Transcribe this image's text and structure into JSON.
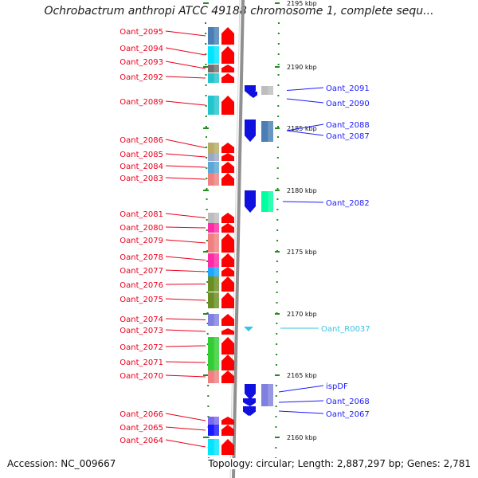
{
  "title": "Ochrobactrum anthropi ATCC 49188 chromosome 1, complete sequ...",
  "accession": "Accession: NC_009667",
  "summary": "Topology: circular; Length: 2,887,297 bp; Genes: 2,781",
  "colors": {
    "left_label": "#e8001c",
    "right_label": "#1a1aff",
    "rna_label": "#39c3e3",
    "forward_arrow": "#ff0000",
    "reverse_arrow": "#1010e0",
    "tick": "#228b22",
    "backbone": "#909090"
  },
  "scale_ticks": [
    {
      "label": "2195 kbp"
    },
    {
      "label": "2190 kbp"
    },
    {
      "label": "2185 kbp"
    },
    {
      "label": "2180 kbp"
    },
    {
      "label": "2175 kbp"
    },
    {
      "label": "2170 kbp"
    },
    {
      "label": "2165 kbp"
    },
    {
      "label": "2160 kbp"
    }
  ],
  "left_genes": [
    {
      "name": "Oant_2095",
      "cog": "#4a7fb5"
    },
    {
      "name": "Oant_2094",
      "cog": "#00e5ff"
    },
    {
      "name": "Oant_2093",
      "cog": "#707070"
    },
    {
      "name": "Oant_2092",
      "cog": "#22c5cc"
    },
    {
      "name": "Oant_2089",
      "cog": "#22c5cc"
    },
    {
      "name": "Oant_2086",
      "cog": "#b7ad66"
    },
    {
      "name": "Oant_2085",
      "cog": "#9aa8c8"
    },
    {
      "name": "Oant_2084",
      "cog": "#5ba7d6"
    },
    {
      "name": "Oant_2083",
      "cog": "#f08080"
    },
    {
      "name": "Oant_2081",
      "cog": "#bdbdbd"
    },
    {
      "name": "Oant_2080",
      "cog": "#ff2aa6"
    },
    {
      "name": "Oant_2079",
      "cog": "#f08080"
    },
    {
      "name": "Oant_2078",
      "cog": "#ff2aa6"
    },
    {
      "name": "Oant_2077",
      "cog": "#1ea7ff"
    },
    {
      "name": "Oant_2076",
      "cog": "#6b8e23"
    },
    {
      "name": "Oant_2075",
      "cog": "#6b8e23"
    },
    {
      "name": "Oant_2074",
      "cog": "#8080e0"
    },
    {
      "name": "Oant_2073",
      "cog": ""
    },
    {
      "name": "Oant_2072",
      "cog": "#32cd32"
    },
    {
      "name": "Oant_2071",
      "cog": "#32cd32"
    },
    {
      "name": "Oant_2070",
      "cog": "#f08080"
    },
    {
      "name": "Oant_2066",
      "cog": "#7b68ee"
    },
    {
      "name": "Oant_2065",
      "cog": "#1a1aff"
    },
    {
      "name": "Oant_2064",
      "cog": "#00e5ff"
    }
  ],
  "right_genes": [
    {
      "name": "Oant_2091",
      "cog": "#bdbdbd",
      "kind": "gene"
    },
    {
      "name": "Oant_2090",
      "cog": "",
      "kind": "gene"
    },
    {
      "name": "Oant_2088",
      "cog": "#4a7fb5",
      "kind": "gene"
    },
    {
      "name": "Oant_2087",
      "cog": "#4a7fb5",
      "kind": "gene"
    },
    {
      "name": "Oant_2082",
      "cog": "#00ffa0",
      "kind": "gene"
    },
    {
      "name": "Oant_R0037",
      "cog": "",
      "kind": "rna"
    },
    {
      "name": "ispDF",
      "cog": "#8080e0",
      "kind": "gene"
    },
    {
      "name": "Oant_2068",
      "cog": "#bdbdbd",
      "kind": "gene"
    },
    {
      "name": "Oant_2067",
      "cog": "",
      "kind": "gene"
    }
  ]
}
